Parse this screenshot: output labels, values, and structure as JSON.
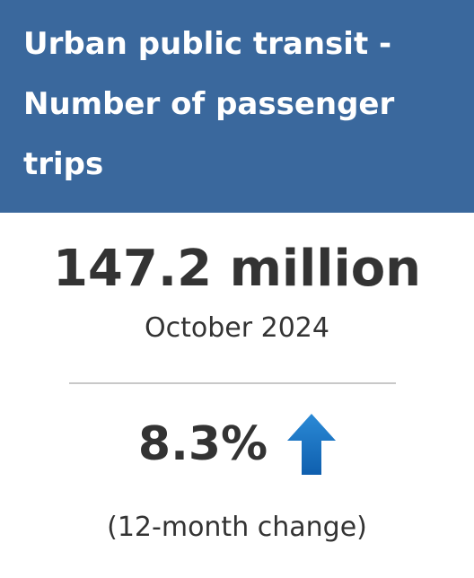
{
  "header": {
    "title": "Urban public transit - Number of passenger trips"
  },
  "stat": {
    "value": "147.2 million",
    "period": "October 2024",
    "change": "8.3%",
    "change_note": "(12-month change)"
  }
}
